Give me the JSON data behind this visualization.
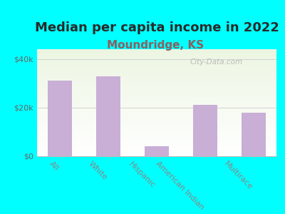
{
  "title": "Median per capita income in 2022",
  "subtitle": "Moundridge, KS",
  "categories": [
    "All",
    "White",
    "Hispanic",
    "American Indian",
    "Multirace"
  ],
  "values": [
    31000,
    33000,
    4000,
    21000,
    18000
  ],
  "bar_color": "#c9aed6",
  "background_outer": "#00ffff",
  "title_color": "#2a2a2a",
  "subtitle_color": "#8b6060",
  "ytick_labels": [
    "$0",
    "$20k",
    "$40k"
  ],
  "ytick_values": [
    0,
    20000,
    40000
  ],
  "ylim": [
    0,
    44000
  ],
  "watermark": "City-Data.com",
  "xlabel_rotation": -45,
  "title_fontsize": 13,
  "subtitle_fontsize": 11,
  "tick_fontsize": 8,
  "label_fontsize": 8
}
